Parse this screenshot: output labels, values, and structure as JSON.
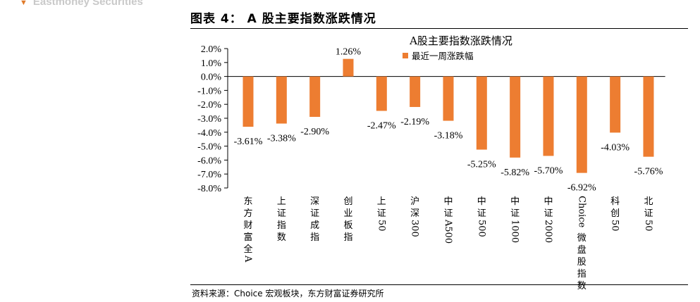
{
  "header": {
    "brand_text": "Eastmoney Securities",
    "figure_title": "图表 4： A 股主要指数涨跌情况"
  },
  "footer": {
    "source": "资料来源：Choice 宏观板块，东方财富证券研究所"
  },
  "colors": {
    "bar": "#ed7d31",
    "axis": "#000000"
  },
  "chart_data": {
    "type": "bar",
    "title": "A股主要指数涨跌情况",
    "categories": [
      "东方财富全A",
      "上证指数",
      "深证成指",
      "创业板指",
      "上证50",
      "沪深300",
      "中证A500",
      "中证500",
      "中证1000",
      "中证2000",
      "Choice微盘股指数",
      "科创50",
      "北证50"
    ],
    "series": [
      {
        "name": "最近一周涨跌幅",
        "values": [
          -3.61,
          -3.38,
          -2.9,
          1.26,
          -2.47,
          -2.19,
          -3.18,
          -5.25,
          -5.82,
          -5.7,
          -6.92,
          -4.03,
          -5.76
        ],
        "data_labels": [
          "-3.61%",
          "-3.38%",
          "-2.90%",
          "1.26%",
          "-2.47%",
          "-2.19%",
          "-3.18%",
          "-5.25%",
          "-5.82%",
          "-5.70%",
          "-6.92%",
          "-4.03%",
          "-5.76%"
        ]
      }
    ],
    "ylim": [
      -8.0,
      2.0
    ],
    "yticks": [
      2.0,
      1.0,
      0.0,
      -1.0,
      -2.0,
      -3.0,
      -4.0,
      -5.0,
      -6.0,
      -7.0,
      -8.0
    ],
    "ytick_labels": [
      "2.0%",
      "1.0%",
      "0.0%",
      "-1.0%",
      "-2.0%",
      "-3.0%",
      "-4.0%",
      "-5.0%",
      "-6.0%",
      "-7.0%",
      "-8.0%"
    ],
    "legend": "top-right",
    "grid": false,
    "xlabel": "",
    "ylabel": ""
  }
}
